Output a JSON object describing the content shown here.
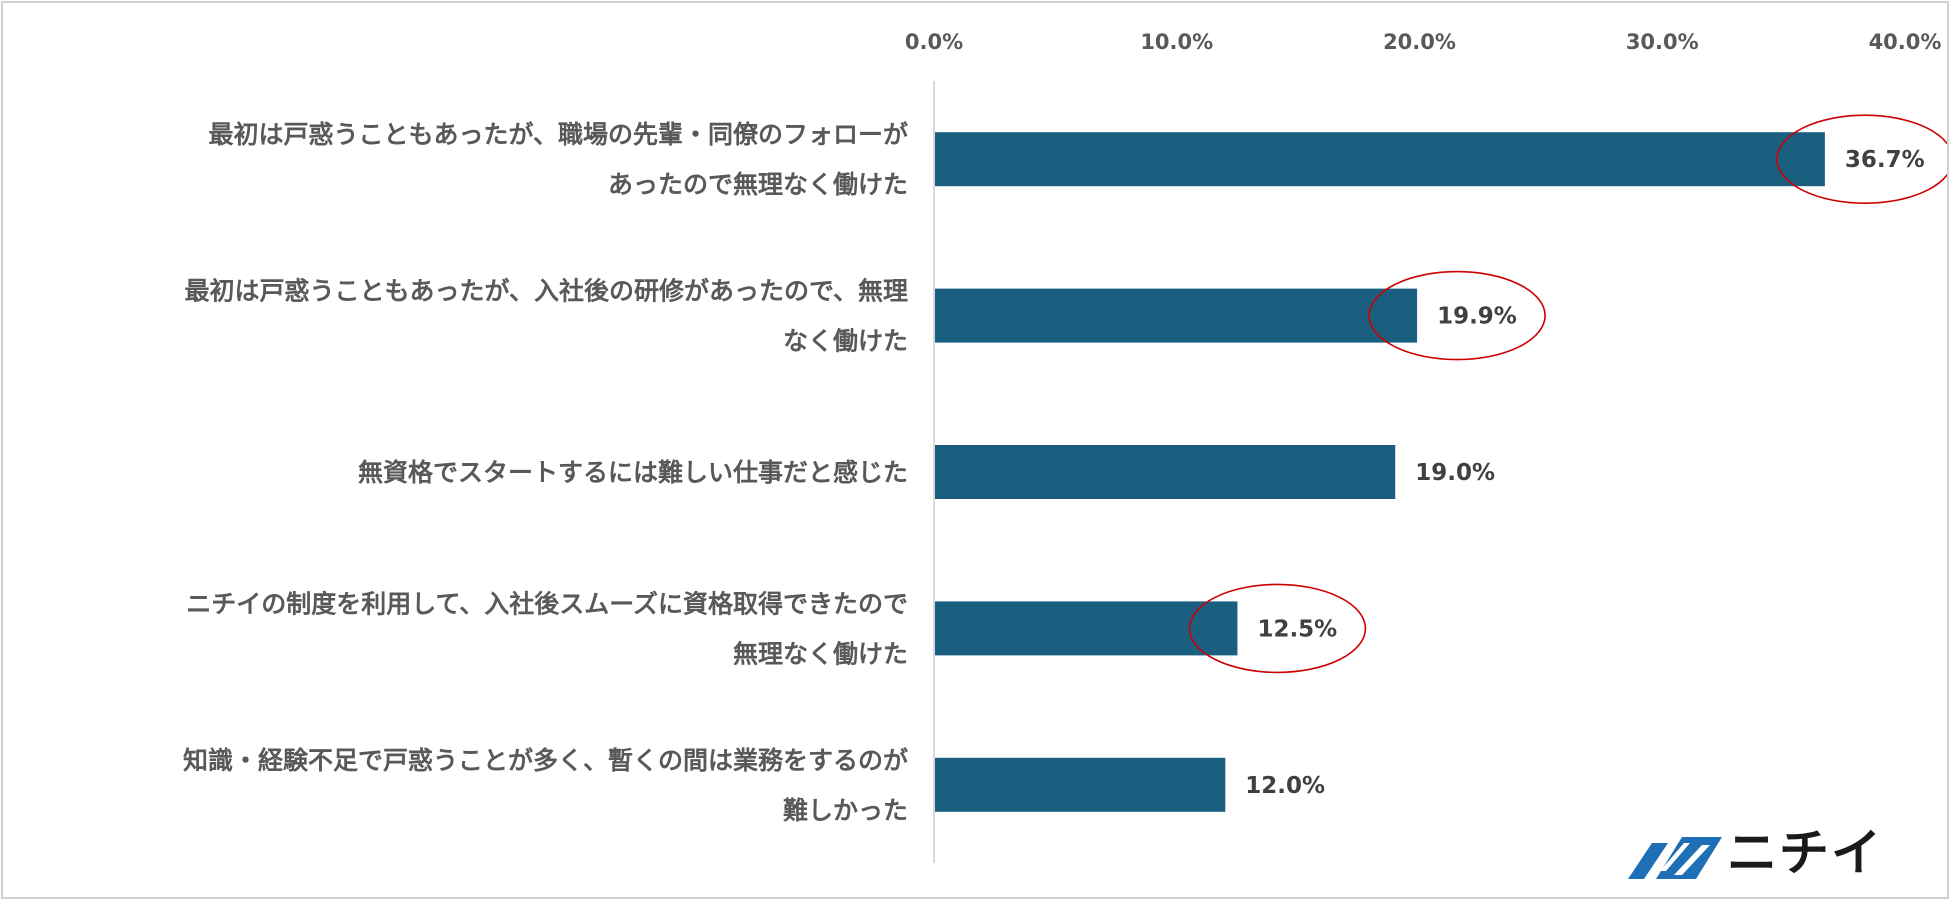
{
  "chart_data": {
    "type": "bar",
    "orientation": "horizontal",
    "title": "",
    "xlabel": "",
    "ylabel": "",
    "xlim": [
      0,
      40
    ],
    "ticks": [
      "0.0%",
      "10.0%",
      "20.0%",
      "30.0%",
      "40.0%"
    ],
    "tick_values": [
      0,
      10,
      20,
      30,
      40
    ],
    "bar_color": "#1a5f80",
    "highlight_color": "#cc0000",
    "grid": false,
    "categories": [
      [
        "最初は戸惑うこともあったが、職場の先輩・同僚のフォローが",
        "あったので無理なく働けた"
      ],
      [
        "最初は戸惑うこともあったが、入社後の研修があったので、無理",
        "なく働けた"
      ],
      [
        "無資格でスタートするには難しい仕事だと感じた"
      ],
      [
        "ニチイの制度を利用して、入社後スムーズに資格取得できたので",
        "無理なく働けた"
      ],
      [
        "知識・経験不足で戸惑うことが多く、暫くの間は業務をするのが",
        "難しかった"
      ]
    ],
    "values": [
      36.7,
      19.9,
      19.0,
      12.5,
      12.0
    ],
    "value_labels": [
      "36.7%",
      "19.9%",
      "19.0%",
      "12.5%",
      "12.0%"
    ],
    "highlighted": [
      true,
      true,
      false,
      true,
      false
    ]
  },
  "logo": {
    "text": "ニチイ",
    "icon": "nichii-logo-icon",
    "color": "#1e6fb5"
  }
}
